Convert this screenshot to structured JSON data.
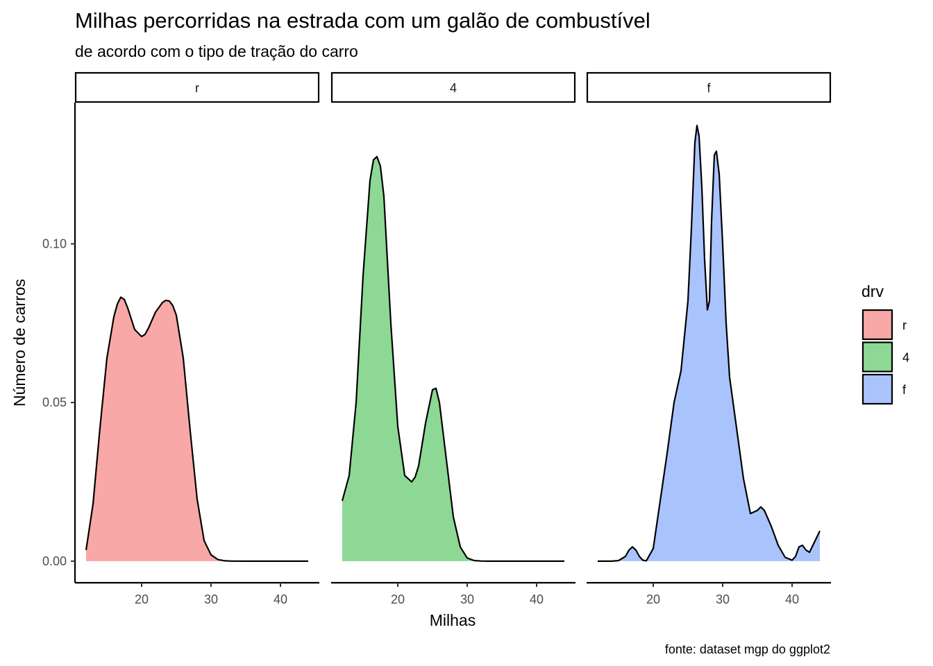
{
  "chart_data": {
    "type": "area",
    "title": "Milhas percorridas na estrada com um galão de combustível",
    "subtitle": "de acordo com o tipo de tração do carro",
    "xlabel": "Milhas",
    "ylabel": "Número de carros",
    "caption": "fonte: dataset mgp do ggplot2",
    "xlim": [
      10.4,
      45.6
    ],
    "ylim": [
      -0.0068,
      0.1445
    ],
    "x_ticks": [
      20,
      30,
      40
    ],
    "x_tick_labels": [
      "20",
      "30",
      "40"
    ],
    "y_ticks": [
      0.0,
      0.05,
      0.1
    ],
    "y_tick_labels": [
      "0.00",
      "0.05",
      "0.10"
    ],
    "grid": false,
    "facet_variable": "drv",
    "legend": {
      "title": "drv",
      "position": "right",
      "entries": [
        {
          "label": "r",
          "color": "#F8766D"
        },
        {
          "label": "4",
          "color": "#7CAE00"
        },
        {
          "label": "f",
          "color": "#619CFF"
        }
      ]
    },
    "series": [
      {
        "name": "r",
        "color": "#F8A8A6",
        "x": [
          12,
          13,
          14,
          15,
          16,
          16.5,
          17,
          17.5,
          18,
          19,
          20,
          20.5,
          21,
          22,
          23,
          23.5,
          24,
          24.5,
          25,
          26,
          27,
          28,
          29,
          30,
          31,
          32,
          33,
          35,
          38,
          41,
          44
        ],
        "y": [
          0.0035,
          0.018,
          0.042,
          0.064,
          0.077,
          0.081,
          0.0832,
          0.0825,
          0.0798,
          0.073,
          0.0708,
          0.0715,
          0.0735,
          0.0785,
          0.0815,
          0.0822,
          0.082,
          0.0805,
          0.0775,
          0.064,
          0.041,
          0.0195,
          0.0065,
          0.002,
          0.0005,
          0.0001,
          3e-05,
          0,
          0,
          0,
          0
        ]
      },
      {
        "name": "4",
        "color": "#8DD894",
        "x": [
          12,
          13,
          14,
          15,
          16,
          16.5,
          17,
          17.5,
          18,
          19,
          20,
          21,
          22,
          22.5,
          23,
          24,
          25,
          25.5,
          26,
          27,
          28,
          29,
          30,
          31,
          32,
          33,
          35,
          38,
          41,
          44
        ],
        "y": [
          0.019,
          0.027,
          0.05,
          0.09,
          0.12,
          0.1265,
          0.1275,
          0.1245,
          0.115,
          0.075,
          0.0425,
          0.027,
          0.025,
          0.0265,
          0.03,
          0.0435,
          0.054,
          0.0545,
          0.05,
          0.032,
          0.014,
          0.0045,
          0.001,
          0.0002,
          5e-05,
          0,
          0,
          0,
          0,
          0
        ]
      },
      {
        "name": "f",
        "color": "#A9C3FD",
        "x": [
          12,
          14,
          15,
          16,
          16.5,
          17,
          17.5,
          18,
          18.5,
          19,
          20,
          21,
          22,
          23,
          24,
          25,
          25.5,
          26,
          26.3,
          26.6,
          27,
          27.4,
          27.8,
          28.1,
          28.4,
          28.8,
          29.1,
          29.5,
          30,
          30.5,
          31,
          32,
          33,
          34,
          35,
          35.5,
          36,
          37,
          38,
          39,
          40,
          40.5,
          41,
          41.5,
          42,
          42.5,
          43,
          44
        ],
        "y": [
          0,
          0,
          0.0002,
          0.0015,
          0.0035,
          0.0045,
          0.0035,
          0.0015,
          0.0003,
          0.0001,
          0.004,
          0.019,
          0.034,
          0.05,
          0.06,
          0.082,
          0.105,
          0.132,
          0.1373,
          0.134,
          0.118,
          0.095,
          0.0792,
          0.082,
          0.107,
          0.128,
          0.1292,
          0.122,
          0.1,
          0.075,
          0.058,
          0.042,
          0.026,
          0.015,
          0.016,
          0.0171,
          0.016,
          0.011,
          0.005,
          0.0012,
          0.0003,
          0.0015,
          0.0045,
          0.005,
          0.0035,
          0.0028,
          0.005,
          0.0095
        ]
      }
    ]
  }
}
